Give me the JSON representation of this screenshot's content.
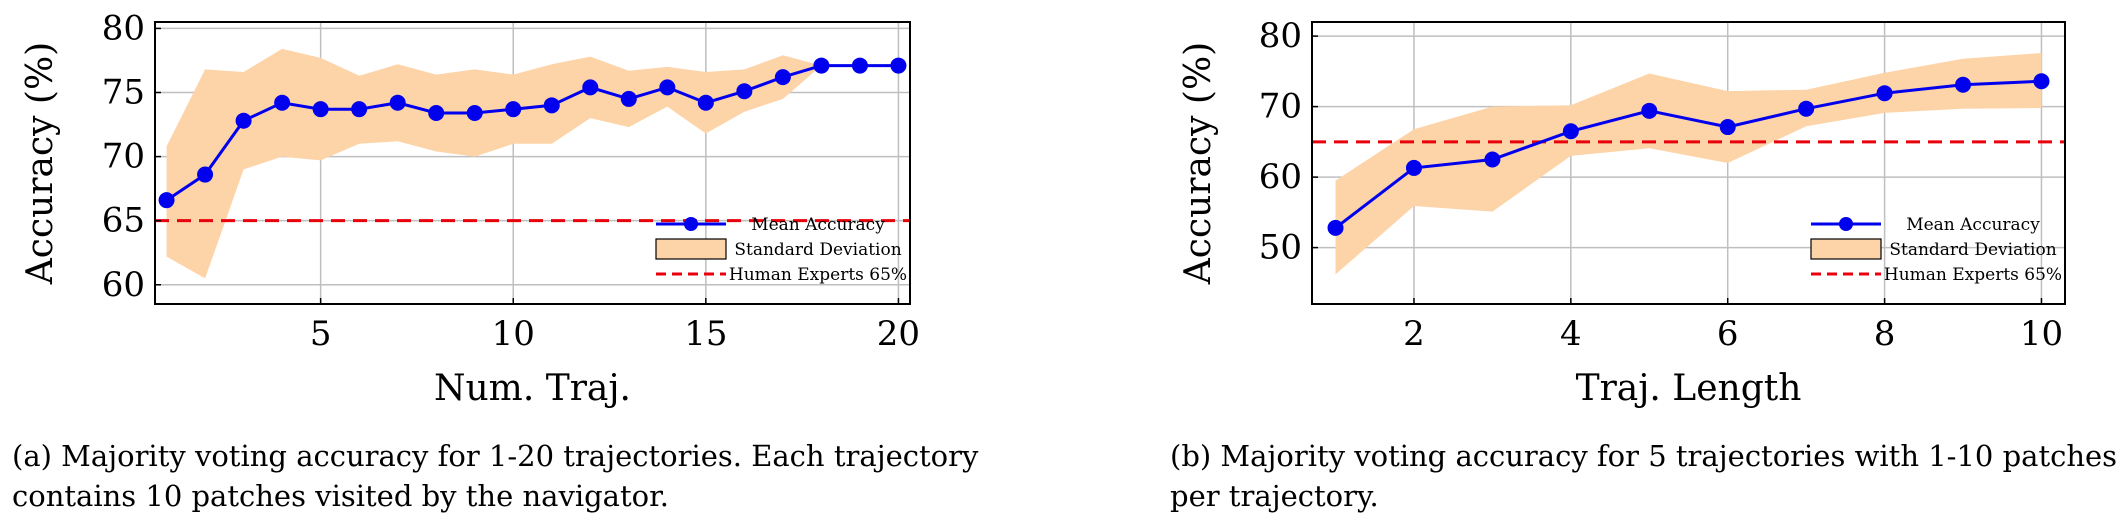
{
  "chart_data": [
    {
      "type": "line",
      "xlabel": "Num. Traj.",
      "ylabel": "Accuracy (%)",
      "xlim": [
        0.7,
        20.3
      ],
      "ylim": [
        58.5,
        80.5
      ],
      "xticks": [
        5,
        10,
        15,
        20
      ],
      "yticks": [
        60,
        65,
        70,
        75,
        80
      ],
      "grid": true,
      "legend_position": "bottom-right",
      "legend": [
        "Mean Accuracy",
        "Standard Deviation",
        "Human Experts 65%"
      ],
      "series": [
        {
          "name": "Mean Accuracy",
          "x": [
            1,
            2,
            3,
            4,
            5,
            6,
            7,
            8,
            9,
            10,
            11,
            12,
            13,
            14,
            15,
            16,
            17,
            18,
            19,
            20
          ],
          "values": [
            66.6,
            68.6,
            72.8,
            74.2,
            73.7,
            73.7,
            74.2,
            73.4,
            73.4,
            73.7,
            74.0,
            75.4,
            74.5,
            75.4,
            74.2,
            75.1,
            76.2,
            77.1,
            77.1,
            77.1
          ]
        },
        {
          "name": "Standard Deviation",
          "x": [
            1,
            2,
            3,
            4,
            5,
            6,
            7,
            8,
            9,
            10,
            11,
            12,
            13,
            14,
            15,
            16,
            17,
            18
          ],
          "upper": [
            70.8,
            76.8,
            76.6,
            78.4,
            77.7,
            76.3,
            77.2,
            76.4,
            76.8,
            76.4,
            77.2,
            77.8,
            76.7,
            77.0,
            76.6,
            76.8,
            77.9,
            77.1
          ],
          "lower": [
            62.2,
            60.5,
            69.0,
            70.0,
            69.7,
            71.0,
            71.2,
            70.4,
            70.0,
            71.0,
            71.0,
            73.0,
            72.3,
            73.9,
            71.8,
            73.5,
            74.5,
            77.1
          ]
        },
        {
          "name": "Human Experts 65%",
          "value": 65
        }
      ]
    },
    {
      "type": "line",
      "xlabel": "Traj. Length",
      "ylabel": "Accuracy (%)",
      "xlim": [
        0.7,
        10.3
      ],
      "ylim": [
        42,
        82
      ],
      "xticks": [
        2,
        4,
        6,
        8,
        10
      ],
      "yticks": [
        50,
        60,
        70,
        80
      ],
      "grid": true,
      "legend_position": "bottom-right",
      "legend": [
        "Mean Accuracy",
        "Standard Deviation",
        "Human Experts 65%"
      ],
      "series": [
        {
          "name": "Mean Accuracy",
          "x": [
            1,
            2,
            3,
            4,
            5,
            6,
            7,
            8,
            9,
            10
          ],
          "values": [
            52.8,
            61.3,
            62.5,
            66.5,
            69.4,
            67.1,
            69.7,
            71.9,
            73.1,
            73.6
          ]
        },
        {
          "name": "Standard Deviation",
          "x": [
            1,
            2,
            3,
            4,
            5,
            6,
            7,
            8,
            9,
            10
          ],
          "upper": [
            59.5,
            66.8,
            70.0,
            70.2,
            74.7,
            72.2,
            72.4,
            74.8,
            76.8,
            77.6
          ],
          "lower": [
            46.2,
            55.9,
            55.1,
            63.0,
            64.1,
            62.0,
            67.2,
            69.1,
            69.7,
            69.8
          ]
        },
        {
          "name": "Human Experts 65%",
          "value": 65
        }
      ]
    }
  ],
  "captions": {
    "a": "(a) Majority voting accuracy for 1-20 trajectories. Each trajectory contains 10 patches visited by the navigator.",
    "b": "(b) Majority voting accuracy for 5 trajectories with 1-10 patches per trajectory."
  },
  "colors": {
    "mean": "#0000ee",
    "band": "#fdd3a8",
    "human": "#e8000b",
    "grid": "#bfbfbf"
  }
}
